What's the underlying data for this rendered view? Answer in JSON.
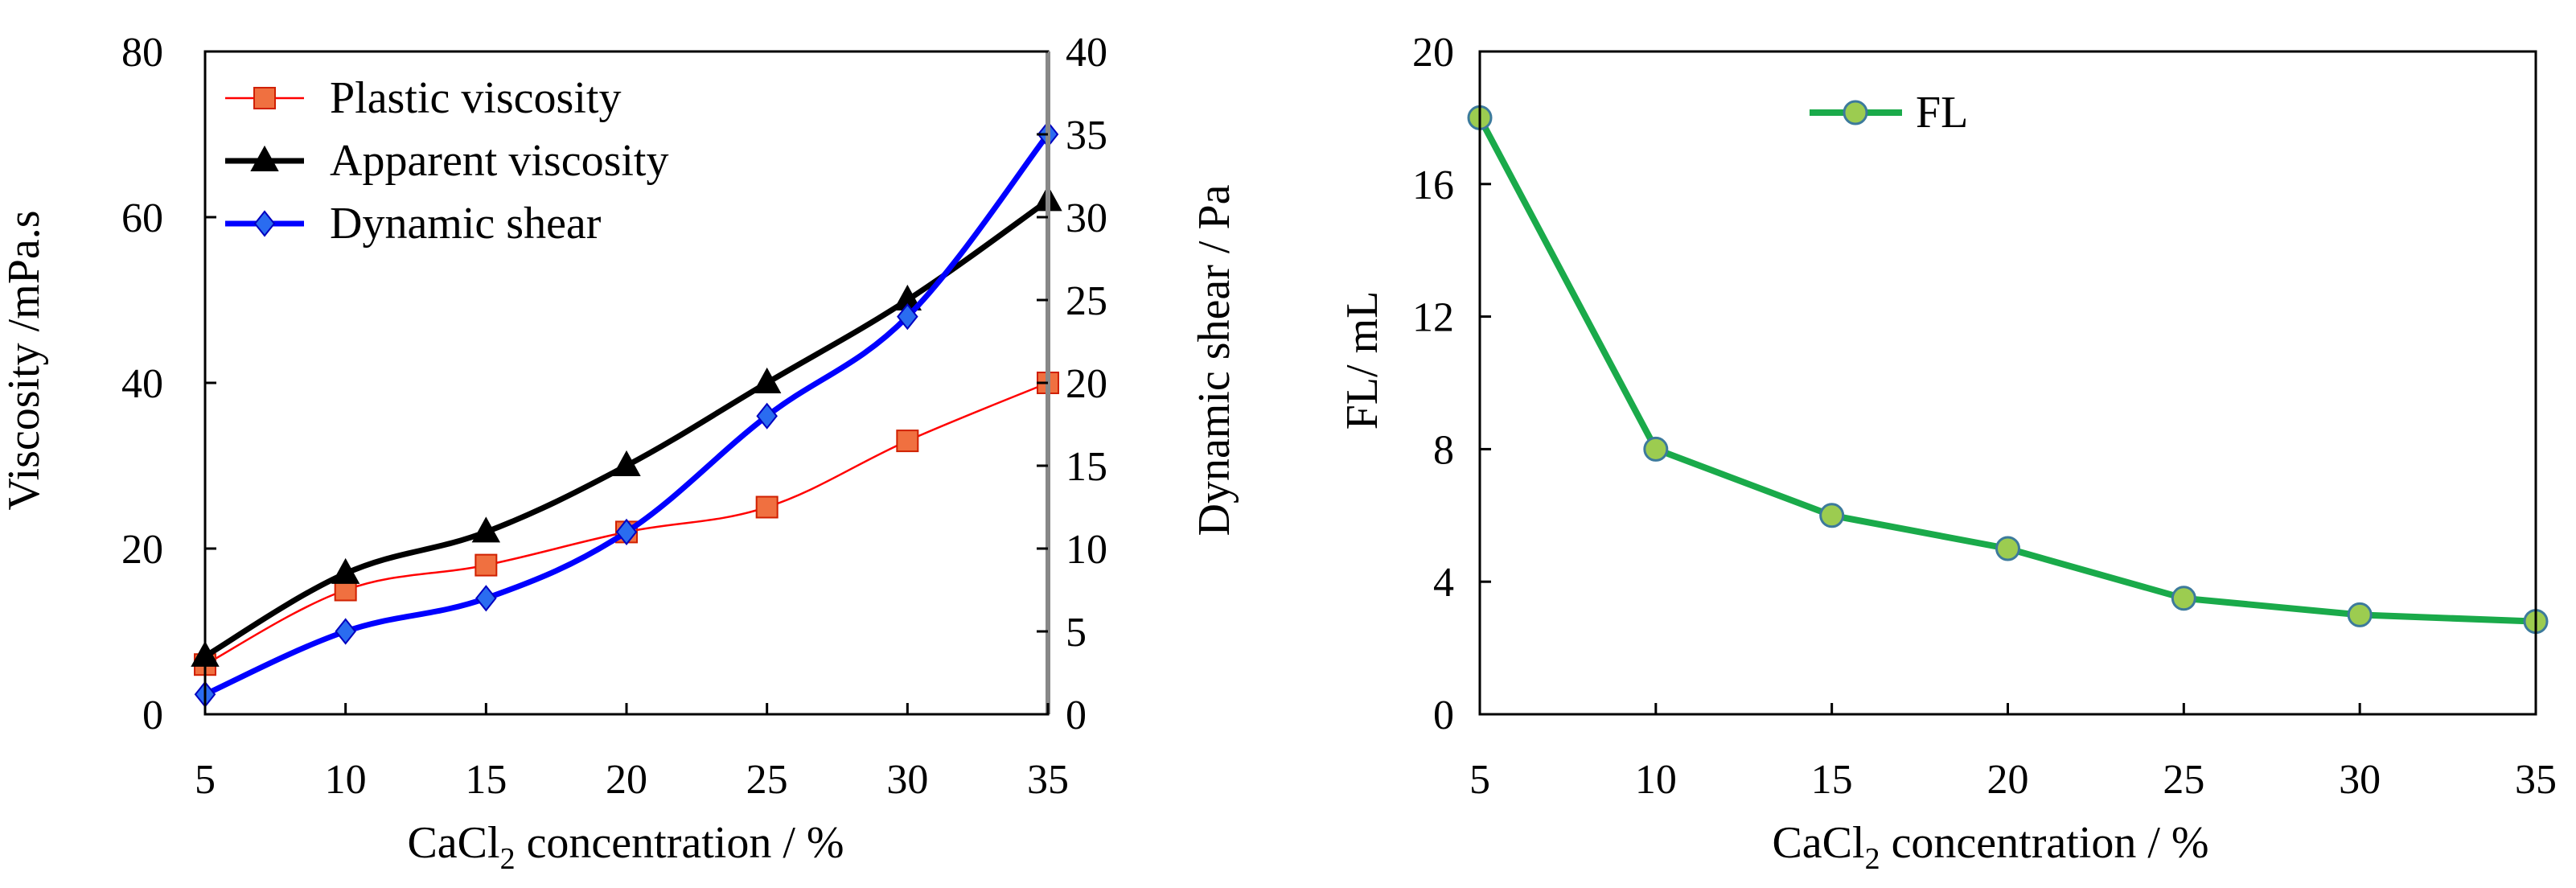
{
  "chart_data": [
    {
      "type": "line",
      "xlabel": "CaCl₂ concentration / %",
      "xlabel_main": "CaCl",
      "xlabel_sub": "2",
      "xlabel_rest": " concentration / %",
      "ylabel_left": "Viscosity /mPa.s",
      "ylabel_right": "Dynamic shear / Pa",
      "x": [
        5,
        10,
        15,
        20,
        25,
        30,
        35
      ],
      "x_ticks": [
        "5",
        "10",
        "15",
        "20",
        "25",
        "30",
        "35"
      ],
      "xlim": [
        5,
        35
      ],
      "ylim_left": [
        0,
        80
      ],
      "ylim_right": [
        0,
        40
      ],
      "y_ticks_left": [
        "0",
        "20",
        "40",
        "60",
        "80"
      ],
      "y_ticks_right": [
        "0",
        "5",
        "10",
        "15",
        "20",
        "25",
        "30",
        "35",
        "40"
      ],
      "legend_position": "top-left",
      "series": [
        {
          "name": "Plastic viscosity",
          "axis": "left",
          "values": [
            6,
            15,
            18,
            22,
            25,
            33,
            40
          ],
          "color": "#ff0000",
          "marker": "square",
          "marker_color": "#f07040"
        },
        {
          "name": "Apparent viscosity",
          "axis": "left",
          "values": [
            7,
            17,
            22,
            30,
            40,
            50,
            62
          ],
          "color": "#000000",
          "marker": "triangle",
          "marker_color": "#000000"
        },
        {
          "name": "Dynamic shear",
          "axis": "right",
          "values": [
            1.2,
            5,
            7,
            11,
            18,
            24,
            35
          ],
          "color": "#0000ff",
          "marker": "diamond",
          "marker_color": "#2a6cf0"
        }
      ]
    },
    {
      "type": "line",
      "xlabel": "CaCl₂ concentration / %",
      "xlabel_main": "CaCl",
      "xlabel_sub": "2",
      "xlabel_rest": " concentration / %",
      "ylabel": "FL/ mL",
      "x": [
        5,
        10,
        15,
        20,
        25,
        30,
        35
      ],
      "x_ticks": [
        "5",
        "10",
        "15",
        "20",
        "25",
        "30",
        "35"
      ],
      "xlim": [
        5,
        35
      ],
      "ylim": [
        0,
        20
      ],
      "y_ticks": [
        "0",
        "4",
        "8",
        "12",
        "16",
        "20"
      ],
      "legend_position": "top-center",
      "series": [
        {
          "name": "FL",
          "values": [
            18,
            8,
            6,
            5,
            3.5,
            3,
            2.8
          ],
          "color": "#1aaa4a",
          "marker": "circle",
          "marker_color": "#9ccc50"
        }
      ]
    }
  ]
}
